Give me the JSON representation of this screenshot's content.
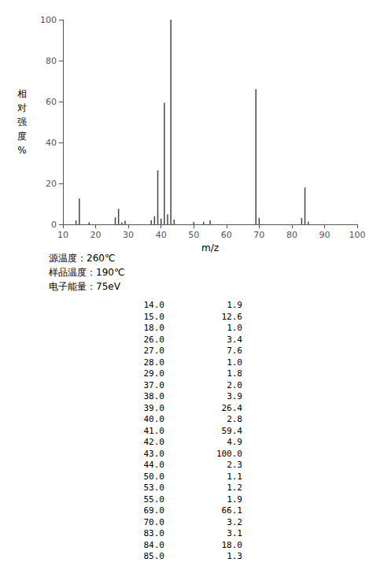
{
  "chart_data": {
    "type": "bar",
    "xlabel": "m/z",
    "ylabel": "相对强度%",
    "x": [
      14.0,
      15.0,
      18.0,
      26.0,
      27.0,
      28.0,
      29.0,
      37.0,
      38.0,
      39.0,
      40.0,
      41.0,
      42.0,
      43.0,
      44.0,
      50.0,
      53.0,
      55.0,
      69.0,
      70.0,
      83.0,
      84.0,
      85.0
    ],
    "values": [
      1.9,
      12.6,
      1.0,
      3.4,
      7.6,
      1.0,
      1.8,
      2.0,
      3.9,
      26.4,
      2.8,
      59.4,
      4.9,
      100.0,
      2.3,
      1.1,
      1.2,
      1.9,
      66.1,
      3.2,
      3.1,
      18.0,
      1.3
    ],
    "x_labels": [
      "14.0",
      "15.0",
      "18.0",
      "26.0",
      "27.0",
      "28.0",
      "29.0",
      "37.0",
      "38.0",
      "39.0",
      "40.0",
      "41.0",
      "42.0",
      "43.0",
      "44.0",
      "50.0",
      "53.0",
      "55.0",
      "69.0",
      "70.0",
      "83.0",
      "84.0",
      "85.0"
    ],
    "value_labels": [
      "1.9",
      "12.6",
      "1.0",
      "3.4",
      "7.6",
      "1.0",
      "1.8",
      "2.0",
      "3.9",
      "26.4",
      "2.8",
      "59.4",
      "4.9",
      "100.0",
      "2.3",
      "1.1",
      "1.2",
      "1.9",
      "66.1",
      "3.2",
      "3.1",
      "18.0",
      "1.3"
    ],
    "annotations": [
      "源温度：260℃",
      "样品温度：190℃",
      "电子能量：75eV"
    ],
    "color": "#444444",
    "xlim": [
      10,
      100
    ],
    "xticks": [
      10,
      20,
      30,
      40,
      50,
      60,
      70,
      80,
      90,
      100
    ],
    "ylim": [
      0,
      100
    ],
    "yticks": [
      0,
      20,
      40,
      60,
      80,
      100
    ],
    "grid": false
  }
}
